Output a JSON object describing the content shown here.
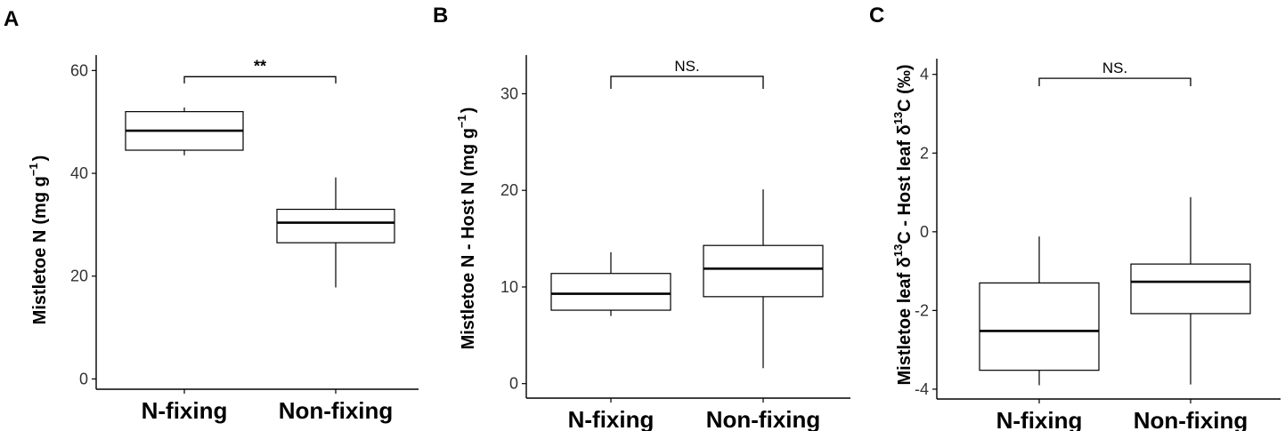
{
  "chart_data": [
    {
      "type": "box",
      "panel_label": "A",
      "ylabel": "Mistletoe N (mg g−1)",
      "ylabel_parts": {
        "main": "Mistletoe N",
        "unit_open": "(mg g",
        "sup": "−1",
        "unit_close": ")"
      },
      "categories": [
        "N-fixing",
        "Non-fixing"
      ],
      "ylim": [
        -2,
        63
      ],
      "yticks": [
        0,
        20,
        40,
        60
      ],
      "boxes": [
        {
          "category": "N-fixing",
          "whisker_low": 43.5,
          "q1": 44.5,
          "median": 48.3,
          "q3": 52.0,
          "whisker_high": 52.8
        },
        {
          "category": "Non-fixing",
          "whisker_low": 17.8,
          "q1": 26.5,
          "median": 30.4,
          "q3": 33.0,
          "whisker_high": 39.2
        }
      ],
      "significance": {
        "label": "**",
        "y": 58.8,
        "tick_bottom": 57.5
      },
      "grid": false
    },
    {
      "type": "box",
      "panel_label": "B",
      "ylabel": "Mistletoe N - Host N (mg g−1)",
      "ylabel_parts": {
        "main": "Mistletoe N - Host N",
        "unit_open": "(mg g",
        "sup": "−1",
        "unit_close": ")"
      },
      "categories": [
        "N-fixing",
        "Non-fixing"
      ],
      "ylim": [
        -1.5,
        34
      ],
      "yticks": [
        0,
        10,
        20,
        30
      ],
      "boxes": [
        {
          "category": "N-fixing",
          "whisker_low": 7.0,
          "q1": 7.6,
          "median": 9.3,
          "q3": 11.4,
          "whisker_high": 13.6
        },
        {
          "category": "Non-fixing",
          "whisker_low": 1.6,
          "q1": 9.0,
          "median": 11.9,
          "q3": 14.3,
          "whisker_high": 20.1
        }
      ],
      "significance": {
        "label": "NS.",
        "y": 31.8,
        "tick_bottom": 30.5
      },
      "grid": false
    },
    {
      "type": "box",
      "panel_label": "C",
      "ylabel": "Mistletoe leaf δ13C - Host leaf δ13C (‰)",
      "ylabel_parts": {
        "p1": "Mistletoe leaf δ",
        "sup1": "13",
        "p2": "C - Host leaf δ",
        "sup2": "13",
        "p3": "C (‰)"
      },
      "categories": [
        "N-fixing",
        "Non-fixing"
      ],
      "ylim": [
        -4.25,
        4.4
      ],
      "yticks": [
        -4,
        -2,
        0,
        2,
        4
      ],
      "boxes": [
        {
          "category": "N-fixing",
          "whisker_low": -3.9,
          "q1": -3.52,
          "median": -2.52,
          "q3": -1.3,
          "whisker_high": -0.12
        },
        {
          "category": "Non-fixing",
          "whisker_low": -3.88,
          "q1": -2.08,
          "median": -1.27,
          "q3": -0.82,
          "whisker_high": 0.88
        }
      ],
      "significance": {
        "label": "NS.",
        "y": 3.9,
        "tick_bottom": 3.7
      },
      "grid": false
    }
  ]
}
